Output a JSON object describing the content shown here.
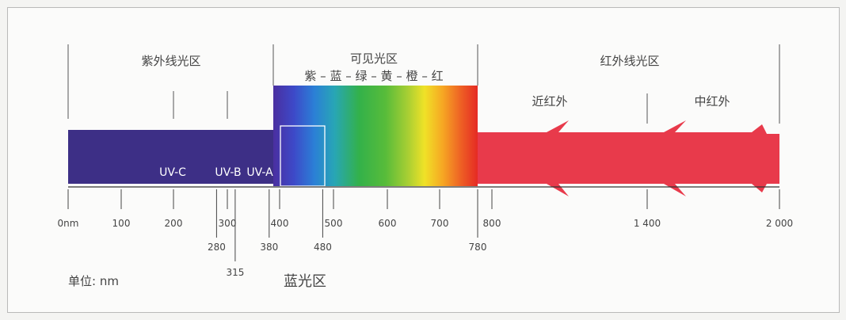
{
  "regions": {
    "uv": "紫外线光区",
    "visible": "可见光区",
    "visible_colors": "紫 – 蓝 – 绿 – 黄 – 橙 – 红",
    "ir": "红外线光区",
    "near_ir": "近红外",
    "mid_ir": "中红外"
  },
  "uv_bands": {
    "uvc": "UV-C",
    "uvb": "UV-B",
    "uva": "UV-A"
  },
  "blue_region_label": "蓝光区",
  "unit_label": "单位:  nm",
  "axis_ticks": [
    {
      "value": 0,
      "label": "0nm",
      "row": 1
    },
    {
      "value": 100,
      "label": "100",
      "row": 1
    },
    {
      "value": 200,
      "label": "200",
      "row": 1
    },
    {
      "value": 280,
      "label": "280",
      "row": 2
    },
    {
      "value": 300,
      "label": "300",
      "row": 1
    },
    {
      "value": 315,
      "label": "315",
      "row": 3
    },
    {
      "value": 380,
      "label": "380",
      "row": 2
    },
    {
      "value": 400,
      "label": "400",
      "row": 1
    },
    {
      "value": 480,
      "label": "480",
      "row": 2
    },
    {
      "value": 500,
      "label": "500",
      "row": 1
    },
    {
      "value": 600,
      "label": "600",
      "row": 1
    },
    {
      "value": 700,
      "label": "700",
      "row": 1
    },
    {
      "value": 780,
      "label": "780",
      "row": 2
    },
    {
      "value": 800,
      "label": "800",
      "row": 1
    },
    {
      "value": 1400,
      "label": "1 400",
      "row": 1
    },
    {
      "value": 2000,
      "label": "2 000",
      "row": 1
    }
  ],
  "colors": {
    "uv": "#3d2f86",
    "ir": "#e83a4b",
    "axis": "#333333",
    "text": "#444444"
  }
}
